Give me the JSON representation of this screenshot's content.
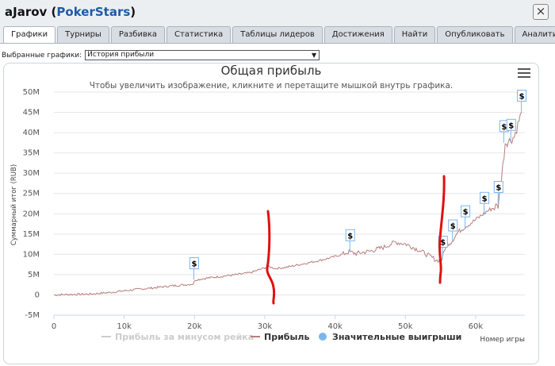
{
  "window": {
    "player": "aJarov",
    "site": "PokerStars",
    "close_glyph": "×"
  },
  "tabs": [
    "Графики",
    "Турниры",
    "Разбивка",
    "Статистика",
    "Таблицы лидеров",
    "Достижения",
    "Найти",
    "Опубликовать",
    "Аналитика"
  ],
  "selector": {
    "label": "Выбранные графики:",
    "value": "История прибыли"
  },
  "chart_data": {
    "type": "line",
    "title": "Общая прибыль",
    "subtitle": "Чтобы увеличить изображение, кликните и перетащите мышкой внутрь графика.",
    "ylabel": "Суммарный итог (RUB)",
    "xlabel": "Номер игры",
    "ylim": [
      -5,
      50
    ],
    "xlim": [
      0,
      67000
    ],
    "y_ticks": [
      "-5M",
      "0",
      "5M",
      "10M",
      "15M",
      "20M",
      "25M",
      "30M",
      "35M",
      "40M",
      "45M",
      "50M"
    ],
    "x_ticks": [
      "0",
      "10k",
      "20k",
      "30k",
      "40k",
      "50k",
      "60k"
    ],
    "grid": true,
    "legend": [
      "Прибыль за минусом рейка",
      "Прибыль",
      "Значительные выигрыши"
    ],
    "legend_position": "bottom",
    "colors": {
      "profit": "#b77d7d",
      "rake_series": "#cccccc",
      "big_wins": "#7cb5ec",
      "annotation": "#e01010"
    },
    "series": [
      {
        "name": "Прибыль",
        "x": [
          0,
          2000,
          5000,
          8000,
          10000,
          12000,
          14000,
          16000,
          18000,
          19800,
          20100,
          22000,
          24000,
          26000,
          28000,
          29500,
          30500,
          31500,
          33000,
          35000,
          37000,
          39000,
          41000,
          42000,
          43000,
          45000,
          47000,
          48500,
          50000,
          52000,
          53500,
          54500,
          55200,
          55800,
          56500,
          57500,
          58500,
          60000,
          61500,
          62500,
          63200,
          63700,
          64200,
          64800,
          65500,
          66500
        ],
        "y": [
          0,
          0.1,
          0.2,
          0.6,
          1.0,
          1.4,
          1.7,
          2.1,
          2.4,
          2.7,
          3.7,
          4.2,
          4.6,
          5.0,
          5.5,
          6.4,
          7.0,
          6.5,
          6.8,
          7.5,
          8.2,
          9.0,
          10.0,
          10.6,
          10.2,
          10.8,
          11.8,
          13.0,
          12.6,
          11.0,
          9.5,
          8.5,
          8.8,
          12.5,
          13.0,
          15.5,
          16.8,
          18.5,
          20.5,
          21.5,
          22.0,
          29.0,
          37.5,
          38.0,
          39.0,
          45.0
        ]
      }
    ],
    "big_wins": [
      {
        "x": 19900,
        "y": 3.7,
        "label": "$"
      },
      {
        "x": 42100,
        "y": 10.6,
        "label": "$"
      },
      {
        "x": 55300,
        "y": 9.0,
        "label": "$"
      },
      {
        "x": 56700,
        "y": 13.0,
        "label": "$"
      },
      {
        "x": 58500,
        "y": 16.5,
        "label": "$"
      },
      {
        "x": 61200,
        "y": 19.8,
        "label": "$"
      },
      {
        "x": 63200,
        "y": 22.5,
        "label": "$"
      },
      {
        "x": 64000,
        "y": 37.5,
        "label": "$"
      },
      {
        "x": 65000,
        "y": 37.8,
        "label": "$"
      },
      {
        "x": 66500,
        "y": 45.0,
        "label": "$"
      }
    ]
  }
}
